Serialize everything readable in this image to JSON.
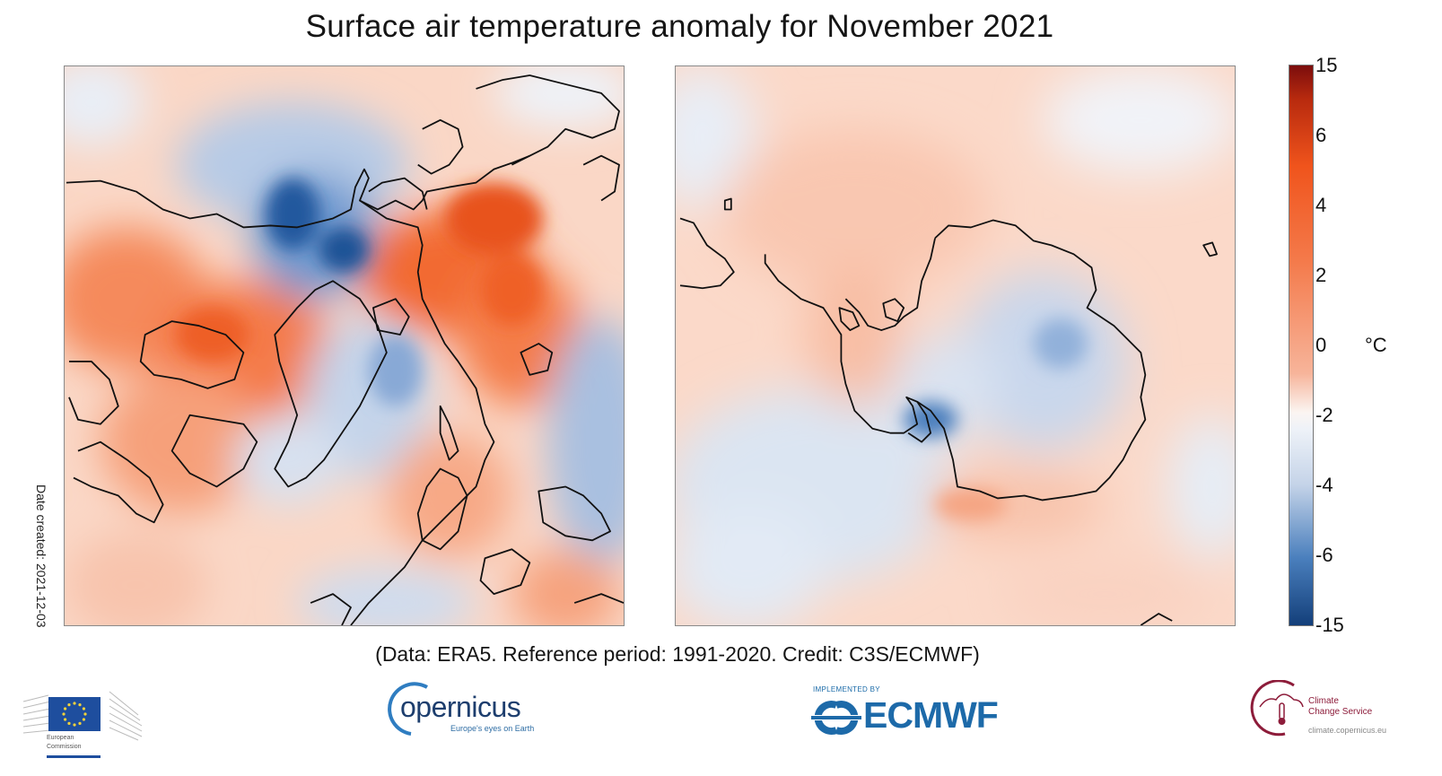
{
  "title": "Surface air temperature anomaly for November 2021",
  "date_created": "Date created: 2021-12-03",
  "caption": "(Data: ERA5.  Reference period: 1991-2020.  Credit: C3S/ECMWF)",
  "maps": [
    {
      "name": "Northern hemisphere (Arctic polar stereographic)",
      "region": "north"
    },
    {
      "name": "Southern hemisphere (Antarctic polar stereographic)",
      "region": "south"
    }
  ],
  "colorbar": {
    "unit": "°C",
    "ticks": [
      "15",
      "6",
      "4",
      "2",
      "0",
      "-2",
      "-4",
      "-6",
      "-15"
    ],
    "tick_values": [
      15,
      6,
      4,
      2,
      0,
      -2,
      -4,
      -6,
      -15
    ],
    "colors": {
      "max": "#7b0d0d",
      "warm": "#f0541c",
      "light_warm": "#f7b49a",
      "zero": "#fbf5f2",
      "light_cool": "#c4d3e8",
      "cool": "#4a7fbd",
      "min": "#133f7a"
    }
  },
  "chart_data": {
    "type": "heatmap",
    "title": "Surface air temperature anomaly for November 2021",
    "subtitle": "(Data: ERA5.  Reference period: 1991-2020.  Credit: C3S/ECMWF)",
    "panels": [
      "Arctic / Northern hemisphere polar view",
      "Antarctic / Southern hemisphere polar view"
    ],
    "colorbar_label": "°C",
    "colorbar_ticks": [
      15,
      6,
      4,
      2,
      0,
      -2,
      -4,
      -6,
      -15
    ],
    "value_range": [
      -15,
      15
    ],
    "notable_anomalies": [
      {
        "panel": 0,
        "region": "Alaska / Bering region",
        "approx_anomaly_c": -6
      },
      {
        "panel": 0,
        "region": "Northern Canada / Canadian Arctic Archipelago",
        "approx_anomaly_c": 4
      },
      {
        "panel": 0,
        "region": "Eastern Europe / Western Russia",
        "approx_anomaly_c": 5
      },
      {
        "panel": 0,
        "region": "Scandinavia / Svalbard",
        "approx_anomaly_c": -2
      },
      {
        "panel": 0,
        "region": "Central Asia (right edge)",
        "approx_anomaly_c": -3
      },
      {
        "panel": 1,
        "region": "East Antarctica interior",
        "approx_anomaly_c": -2
      },
      {
        "panel": 1,
        "region": "Ross Ice Shelf area",
        "approx_anomaly_c": -5
      },
      {
        "panel": 1,
        "region": "Antarctic Peninsula / Weddell Sea",
        "approx_anomaly_c": 2
      },
      {
        "panel": 1,
        "region": "Southern Ocean (south Pacific)",
        "approx_anomaly_c": -1
      }
    ]
  },
  "logos": {
    "eu": {
      "line1": "European",
      "line2": "Commission"
    },
    "copernicus": {
      "name": "opernicus",
      "tagline": "Europe's eyes on Earth"
    },
    "ecmwf": {
      "top": "IMPLEMENTED BY",
      "name": "ECMWF"
    },
    "c3s": {
      "line1": "Climate",
      "line2": "Change Service",
      "url": "climate.copernicus.eu"
    }
  }
}
